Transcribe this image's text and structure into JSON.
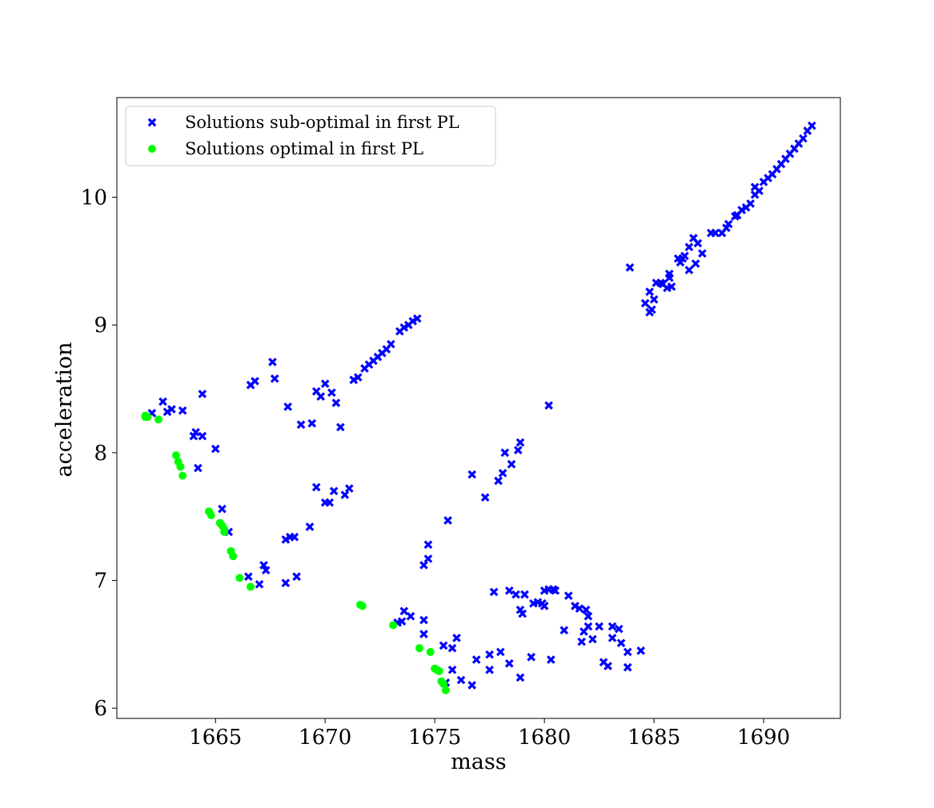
{
  "chart_data": {
    "type": "scatter",
    "title": "",
    "xlabel": "mass",
    "ylabel": "acceleration",
    "xlim": [
      1660.5,
      1693.5
    ],
    "ylim": [
      5.92,
      10.78
    ],
    "xticks": [
      1665,
      1670,
      1675,
      1680,
      1685,
      1690
    ],
    "yticks": [
      6,
      7,
      8,
      9,
      10
    ],
    "grid": false,
    "legend_position": "top-left",
    "series": [
      {
        "name": "Solutions sub-optimal in first PL",
        "marker": "x-filled",
        "color": "#0000ff",
        "points": [
          [
            1662.1,
            8.31
          ],
          [
            1662.6,
            8.4
          ],
          [
            1662.8,
            8.32
          ],
          [
            1663.0,
            8.34
          ],
          [
            1663.5,
            8.33
          ],
          [
            1664.0,
            8.13
          ],
          [
            1664.1,
            8.16
          ],
          [
            1664.2,
            7.88
          ],
          [
            1664.4,
            8.13
          ],
          [
            1664.4,
            8.46
          ],
          [
            1665.0,
            8.03
          ],
          [
            1665.3,
            7.56
          ],
          [
            1665.6,
            7.38
          ],
          [
            1666.5,
            7.03
          ],
          [
            1666.6,
            8.53
          ],
          [
            1666.8,
            8.56
          ],
          [
            1667.0,
            6.97
          ],
          [
            1667.2,
            7.12
          ],
          [
            1667.3,
            7.08
          ],
          [
            1667.6,
            8.71
          ],
          [
            1667.7,
            8.58
          ],
          [
            1668.2,
            6.98
          ],
          [
            1668.2,
            7.32
          ],
          [
            1668.3,
            8.36
          ],
          [
            1668.4,
            7.34
          ],
          [
            1668.6,
            7.34
          ],
          [
            1668.7,
            7.03
          ],
          [
            1668.9,
            8.22
          ],
          [
            1669.3,
            7.42
          ],
          [
            1669.4,
            8.23
          ],
          [
            1669.6,
            7.73
          ],
          [
            1669.6,
            8.48
          ],
          [
            1669.8,
            8.44
          ],
          [
            1670.0,
            7.61
          ],
          [
            1670.0,
            8.54
          ],
          [
            1670.2,
            7.61
          ],
          [
            1670.3,
            8.47
          ],
          [
            1670.4,
            7.7
          ],
          [
            1670.5,
            8.39
          ],
          [
            1670.7,
            8.2
          ],
          [
            1670.9,
            7.67
          ],
          [
            1671.1,
            7.72
          ],
          [
            1671.3,
            8.57
          ],
          [
            1671.5,
            8.59
          ],
          [
            1671.8,
            8.66
          ],
          [
            1672.0,
            8.69
          ],
          [
            1672.2,
            8.72
          ],
          [
            1672.4,
            8.75
          ],
          [
            1672.6,
            8.78
          ],
          [
            1672.8,
            8.81
          ],
          [
            1673.0,
            8.85
          ],
          [
            1673.4,
            8.95
          ],
          [
            1673.6,
            8.98
          ],
          [
            1673.8,
            9.0
          ],
          [
            1674.0,
            9.03
          ],
          [
            1674.2,
            9.05
          ],
          [
            1673.3,
            6.67
          ],
          [
            1673.5,
            6.68
          ],
          [
            1673.6,
            6.76
          ],
          [
            1673.9,
            6.72
          ],
          [
            1674.5,
            6.58
          ],
          [
            1674.5,
            6.69
          ],
          [
            1674.5,
            7.12
          ],
          [
            1674.7,
            7.17
          ],
          [
            1674.7,
            7.28
          ],
          [
            1675.4,
            6.49
          ],
          [
            1675.5,
            6.2
          ],
          [
            1675.6,
            7.47
          ],
          [
            1675.8,
            6.3
          ],
          [
            1675.8,
            6.47
          ],
          [
            1676.0,
            6.55
          ],
          [
            1676.2,
            6.22
          ],
          [
            1676.7,
            6.18
          ],
          [
            1676.7,
            7.83
          ],
          [
            1676.9,
            6.38
          ],
          [
            1677.3,
            7.65
          ],
          [
            1677.5,
            6.3
          ],
          [
            1677.5,
            6.42
          ],
          [
            1677.7,
            6.91
          ],
          [
            1677.9,
            7.78
          ],
          [
            1678.0,
            6.44
          ],
          [
            1678.1,
            7.84
          ],
          [
            1678.2,
            8.0
          ],
          [
            1678.4,
            6.92
          ],
          [
            1678.4,
            6.35
          ],
          [
            1678.5,
            7.91
          ],
          [
            1678.7,
            6.89
          ],
          [
            1678.8,
            8.02
          ],
          [
            1678.9,
            6.24
          ],
          [
            1678.9,
            6.77
          ],
          [
            1678.9,
            8.08
          ],
          [
            1679.0,
            6.74
          ],
          [
            1679.1,
            6.89
          ],
          [
            1679.4,
            6.4
          ],
          [
            1679.5,
            6.82
          ],
          [
            1679.7,
            6.83
          ],
          [
            1679.9,
            6.82
          ],
          [
            1680.0,
            6.92
          ],
          [
            1680.0,
            6.8
          ],
          [
            1680.2,
            6.93
          ],
          [
            1680.2,
            8.37
          ],
          [
            1680.3,
            6.38
          ],
          [
            1680.4,
            6.93
          ],
          [
            1680.5,
            6.92
          ],
          [
            1680.9,
            6.61
          ],
          [
            1681.1,
            6.88
          ],
          [
            1681.4,
            6.8
          ],
          [
            1681.6,
            6.78
          ],
          [
            1681.7,
            6.52
          ],
          [
            1681.8,
            6.6
          ],
          [
            1681.9,
            6.77
          ],
          [
            1682.0,
            6.64
          ],
          [
            1682.0,
            6.72
          ],
          [
            1682.2,
            6.54
          ],
          [
            1682.5,
            6.64
          ],
          [
            1682.7,
            6.36
          ],
          [
            1682.9,
            6.33
          ],
          [
            1683.1,
            6.64
          ],
          [
            1683.1,
            6.55
          ],
          [
            1683.4,
            6.62
          ],
          [
            1683.5,
            6.51
          ],
          [
            1683.8,
            6.44
          ],
          [
            1683.8,
            6.32
          ],
          [
            1683.9,
            9.45
          ],
          [
            1684.4,
            6.45
          ],
          [
            1684.6,
            9.17
          ],
          [
            1684.8,
            9.1
          ],
          [
            1684.8,
            9.26
          ],
          [
            1684.9,
            9.12
          ],
          [
            1685.0,
            9.2
          ],
          [
            1685.1,
            9.33
          ],
          [
            1685.3,
            9.33
          ],
          [
            1685.4,
            9.32
          ],
          [
            1685.6,
            9.29
          ],
          [
            1685.7,
            9.37
          ],
          [
            1685.7,
            9.4
          ],
          [
            1685.8,
            9.3
          ],
          [
            1686.1,
            9.52
          ],
          [
            1686.2,
            9.49
          ],
          [
            1686.3,
            9.52
          ],
          [
            1686.4,
            9.54
          ],
          [
            1686.6,
            9.43
          ],
          [
            1686.6,
            9.61
          ],
          [
            1686.8,
            9.68
          ],
          [
            1686.9,
            9.48
          ],
          [
            1687.0,
            9.64
          ],
          [
            1687.2,
            9.56
          ],
          [
            1687.6,
            9.72
          ],
          [
            1687.8,
            9.72
          ],
          [
            1688.1,
            9.72
          ],
          [
            1688.3,
            9.76
          ],
          [
            1688.4,
            9.79
          ],
          [
            1688.7,
            9.85
          ],
          [
            1688.8,
            9.86
          ],
          [
            1689.0,
            9.9
          ],
          [
            1689.2,
            9.92
          ],
          [
            1689.4,
            9.95
          ],
          [
            1689.6,
            10.02
          ],
          [
            1689.6,
            10.08
          ],
          [
            1689.8,
            10.05
          ],
          [
            1690.0,
            10.12
          ],
          [
            1690.2,
            10.15
          ],
          [
            1690.4,
            10.18
          ],
          [
            1690.6,
            10.22
          ],
          [
            1690.8,
            10.26
          ],
          [
            1691.0,
            10.3
          ],
          [
            1691.2,
            10.34
          ],
          [
            1691.4,
            10.38
          ],
          [
            1691.6,
            10.42
          ],
          [
            1691.8,
            10.46
          ],
          [
            1692.0,
            10.52
          ],
          [
            1692.2,
            10.56
          ]
        ]
      },
      {
        "name": "Solutions optimal in first PL",
        "marker": "circle",
        "color": "#00ff00",
        "points": [
          [
            1661.8,
            8.29
          ],
          [
            1661.8,
            8.28
          ],
          [
            1661.9,
            8.28
          ],
          [
            1662.4,
            8.26
          ],
          [
            1663.2,
            7.98
          ],
          [
            1663.3,
            7.93
          ],
          [
            1663.4,
            7.89
          ],
          [
            1663.5,
            7.82
          ],
          [
            1664.7,
            7.54
          ],
          [
            1664.8,
            7.51
          ],
          [
            1665.2,
            7.45
          ],
          [
            1665.3,
            7.43
          ],
          [
            1665.4,
            7.4
          ],
          [
            1665.4,
            7.38
          ],
          [
            1665.7,
            7.23
          ],
          [
            1665.8,
            7.19
          ],
          [
            1666.1,
            7.02
          ],
          [
            1666.6,
            6.95
          ],
          [
            1671.6,
            6.81
          ],
          [
            1671.7,
            6.8
          ],
          [
            1673.1,
            6.65
          ],
          [
            1674.3,
            6.47
          ],
          [
            1674.8,
            6.44
          ],
          [
            1675.0,
            6.31
          ],
          [
            1675.1,
            6.3
          ],
          [
            1675.2,
            6.29
          ],
          [
            1675.3,
            6.21
          ],
          [
            1675.4,
            6.19
          ],
          [
            1675.5,
            6.14
          ]
        ]
      }
    ]
  }
}
